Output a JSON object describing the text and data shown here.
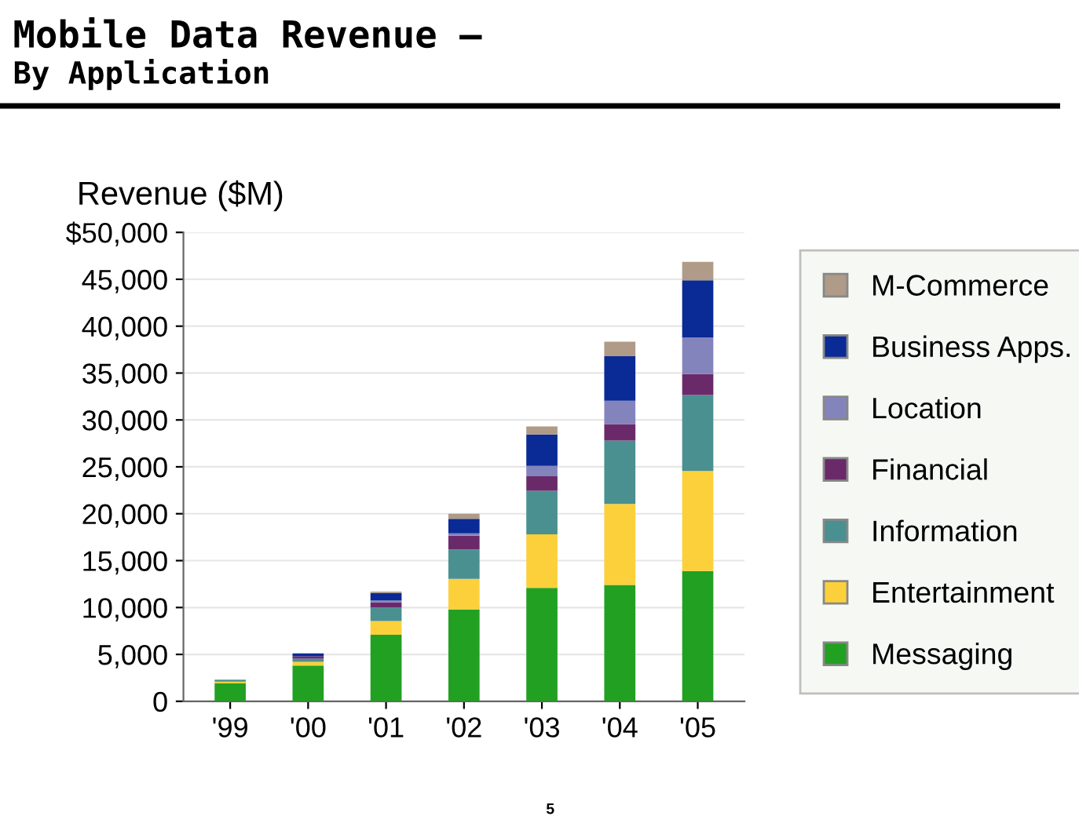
{
  "chart_data": {
    "type": "bar",
    "stacked": true,
    "title": "Mobile Data Revenue —",
    "subtitle": "By Application",
    "ylabel": "Revenue ($M)",
    "categories": [
      "'99",
      "'00",
      "'01",
      "'02",
      "'03",
      "'04",
      "'05"
    ],
    "series": [
      {
        "name": "Messaging",
        "color": "#22a022",
        "values": [
          1900,
          3800,
          7100,
          9800,
          12100,
          12400,
          13900
        ]
      },
      {
        "name": "Entertainment",
        "color": "#fcd03a",
        "values": [
          200,
          400,
          1450,
          3250,
          5700,
          8650,
          10650
        ]
      },
      {
        "name": "Information",
        "color": "#4a9090",
        "values": [
          200,
          350,
          1450,
          3150,
          4650,
          6750,
          8100
        ]
      },
      {
        "name": "Financial",
        "color": "#6a2a6a",
        "values": [
          null,
          250,
          550,
          1450,
          1550,
          1750,
          2250
        ]
      },
      {
        "name": "Location",
        "color": "#8484bc",
        "values": [
          null,
          null,
          200,
          250,
          1100,
          2500,
          3900
        ]
      },
      {
        "name": "Business Apps.",
        "color": "#0a2a96",
        "values": [
          null,
          300,
          800,
          1550,
          3350,
          4750,
          6100
        ]
      },
      {
        "name": "M-Commerce",
        "color": "#b09a88",
        "values": [
          null,
          null,
          150,
          550,
          850,
          1550,
          1950
        ]
      }
    ],
    "ylim": [
      0,
      50000
    ],
    "yticks": [
      0,
      {
        "value": 5000,
        "label": "5,000"
      },
      {
        "value": 10000,
        "label": "10,000"
      },
      {
        "value": 15000,
        "label": "15,000"
      },
      {
        "value": 20000,
        "label": "20,000"
      },
      {
        "value": 25000,
        "label": "25,000"
      },
      {
        "value": 30000,
        "label": "30,000"
      },
      {
        "value": 35000,
        "label": "35,000"
      },
      {
        "value": 40000,
        "label": "40,000"
      },
      {
        "value": 45000,
        "label": "45,000"
      },
      {
        "value": 50000,
        "label": "$50,000"
      }
    ],
    "grid": "y",
    "legend": "right",
    "annotations": [
      "5"
    ]
  }
}
